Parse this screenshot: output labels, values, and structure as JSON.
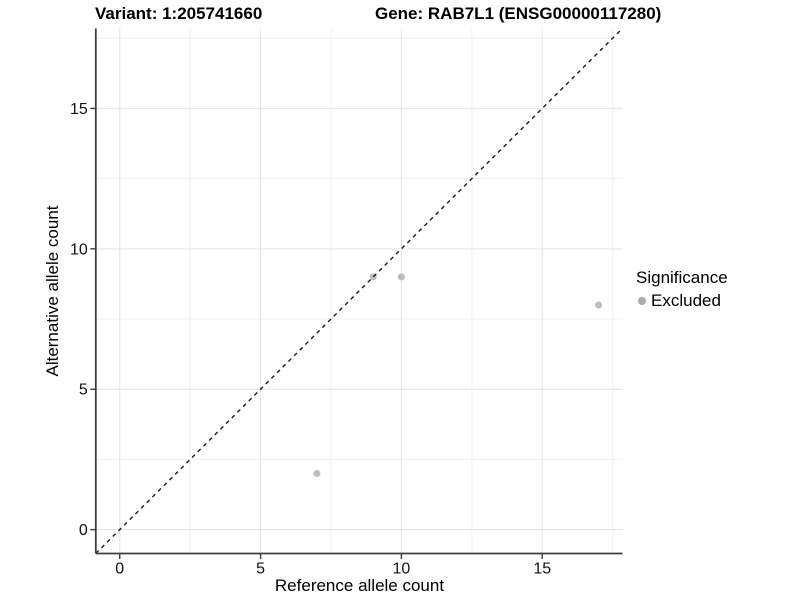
{
  "titles": {
    "variant": "Variant: 1:205741660",
    "gene": "Gene: RAB7L1 (ENSG00000117280)"
  },
  "legend": {
    "title": "Significance",
    "items": [
      {
        "label": "Excluded",
        "color": "#a9a9a9"
      }
    ]
  },
  "chart_data": {
    "type": "scatter",
    "xlabel": "Reference allele count",
    "ylabel": "Alternative allele count",
    "xlim": [
      -0.85,
      17.85
    ],
    "ylim": [
      -0.85,
      17.85
    ],
    "x_ticks": [
      0,
      5,
      10,
      15
    ],
    "y_ticks": [
      0,
      5,
      10,
      15
    ],
    "x_minor_ticks": [
      2.5,
      7.5,
      12.5,
      17.5
    ],
    "y_minor_ticks": [
      2.5,
      7.5,
      12.5,
      17.5
    ],
    "series": [
      {
        "name": "Excluded",
        "color": "#bdbdbd",
        "points": [
          [
            7,
            2
          ],
          [
            9,
            9
          ],
          [
            10,
            9
          ],
          [
            17,
            8
          ]
        ]
      }
    ],
    "identity_line": {
      "style": "dashed",
      "slope": 1,
      "intercept": 0,
      "color": "#1a1a1a"
    },
    "grid": {
      "major_color": "#e4e4e4",
      "minor_color": "#f1f1f1"
    },
    "axis_color": "#3f3f3f",
    "tick_label_color": "#111111",
    "legend_position": "right",
    "grid_on": true
  }
}
